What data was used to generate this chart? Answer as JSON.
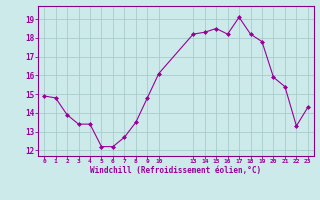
{
  "x": [
    0,
    1,
    2,
    3,
    4,
    5,
    6,
    7,
    8,
    9,
    10,
    13,
    14,
    15,
    16,
    17,
    18,
    19,
    20,
    21,
    22,
    23
  ],
  "y": [
    14.9,
    14.8,
    13.9,
    13.4,
    13.4,
    12.2,
    12.2,
    12.7,
    13.5,
    14.8,
    16.1,
    18.2,
    18.3,
    18.5,
    18.2,
    19.1,
    18.2,
    17.8,
    15.9,
    15.4,
    13.3,
    14.3
  ],
  "line_color": "#990099",
  "marker": "D",
  "marker_size": 2.0,
  "bg_color": "#cceaea",
  "grid_color": "#aacccc",
  "axis_color": "#880088",
  "tick_color": "#990099",
  "xtick_labels": [
    "0",
    "1",
    "2",
    "3",
    "4",
    "5",
    "6",
    "7",
    "8",
    "9",
    "10",
    "13",
    "14",
    "15",
    "16",
    "17",
    "18",
    "19",
    "20",
    "21",
    "22",
    "23"
  ],
  "xtick_positions": [
    0,
    1,
    2,
    3,
    4,
    5,
    6,
    7,
    8,
    9,
    10,
    13,
    14,
    15,
    16,
    17,
    18,
    19,
    20,
    21,
    22,
    23
  ],
  "ytick_labels": [
    "12",
    "13",
    "14",
    "15",
    "16",
    "17",
    "18",
    "19"
  ],
  "ytick_positions": [
    12,
    13,
    14,
    15,
    16,
    17,
    18,
    19
  ],
  "ylim": [
    11.7,
    19.7
  ],
  "xlim": [
    -0.5,
    23.5
  ],
  "xlabel": "Windchill (Refroidissement éolien,°C)",
  "font_color": "#990099"
}
